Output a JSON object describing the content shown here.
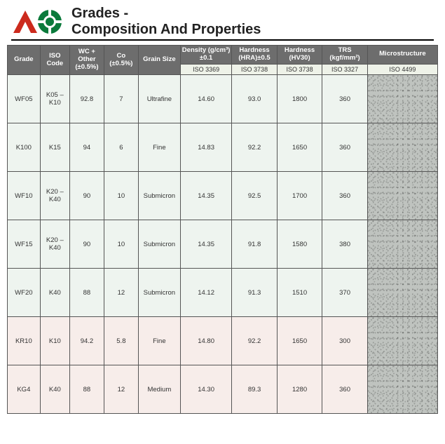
{
  "title_line1": "Grades -",
  "title_line2": "Composition And Properties",
  "headers": {
    "grade": "Grade",
    "iso_code": "ISO Code",
    "wc": "WC + Other (±0.5%)",
    "co": "Co (±0.5%)",
    "grain": "Grain Size",
    "density": "Density (g/cm³)±0.1",
    "hra": "Hardness (HRA)±0.5",
    "hv": "Hardness (HV30)",
    "trs": "TRS (kgf/mm²)",
    "micro": "Microstructure"
  },
  "iso_subs": {
    "density": "ISO 3369",
    "hra": "ISO 3738",
    "hv": "ISO 3738",
    "trs": "ISO 3327",
    "micro": "ISO 4499"
  },
  "rows": [
    {
      "tint": "tint-green",
      "grade": "WF05",
      "iso": "K05 – K10",
      "wc": "92.8",
      "co": "7",
      "grain": "Ultrafine",
      "density": "14.60",
      "hra": "93.0",
      "hv": "1800",
      "trs": "360"
    },
    {
      "tint": "tint-green",
      "grade": "K100",
      "iso": "K15",
      "wc": "94",
      "co": "6",
      "grain": "Fine",
      "density": "14.83",
      "hra": "92.2",
      "hv": "1650",
      "trs": "360"
    },
    {
      "tint": "tint-green",
      "grade": "WF10",
      "iso": "K20 – K40",
      "wc": "90",
      "co": "10",
      "grain": "Submicron",
      "density": "14.35",
      "hra": "92.5",
      "hv": "1700",
      "trs": "360"
    },
    {
      "tint": "tint-green",
      "grade": "WF15",
      "iso": "K20 – K40",
      "wc": "90",
      "co": "10",
      "grain": "Submicron",
      "density": "14.35",
      "hra": "91.8",
      "hv": "1580",
      "trs": "380"
    },
    {
      "tint": "tint-green",
      "grade": "WF20",
      "iso": "K40",
      "wc": "88",
      "co": "12",
      "grain": "Submicron",
      "density": "14.12",
      "hra": "91.3",
      "hv": "1510",
      "trs": "370"
    },
    {
      "tint": "tint-pink",
      "grade": "KR10",
      "iso": "K10",
      "wc": "94.2",
      "co": "5.8",
      "grain": "Fine",
      "density": "14.80",
      "hra": "92.2",
      "hv": "1650",
      "trs": "300"
    },
    {
      "tint": "tint-pink",
      "grade": "KG4",
      "iso": "K40",
      "wc": "88",
      "co": "12",
      "grain": "Medium",
      "density": "14.30",
      "hra": "89.3",
      "hv": "1280",
      "trs": "360"
    }
  ],
  "logo_colors": {
    "red": "#cc2a1d",
    "green": "#0b7a3b",
    "white": "#ffffff"
  }
}
